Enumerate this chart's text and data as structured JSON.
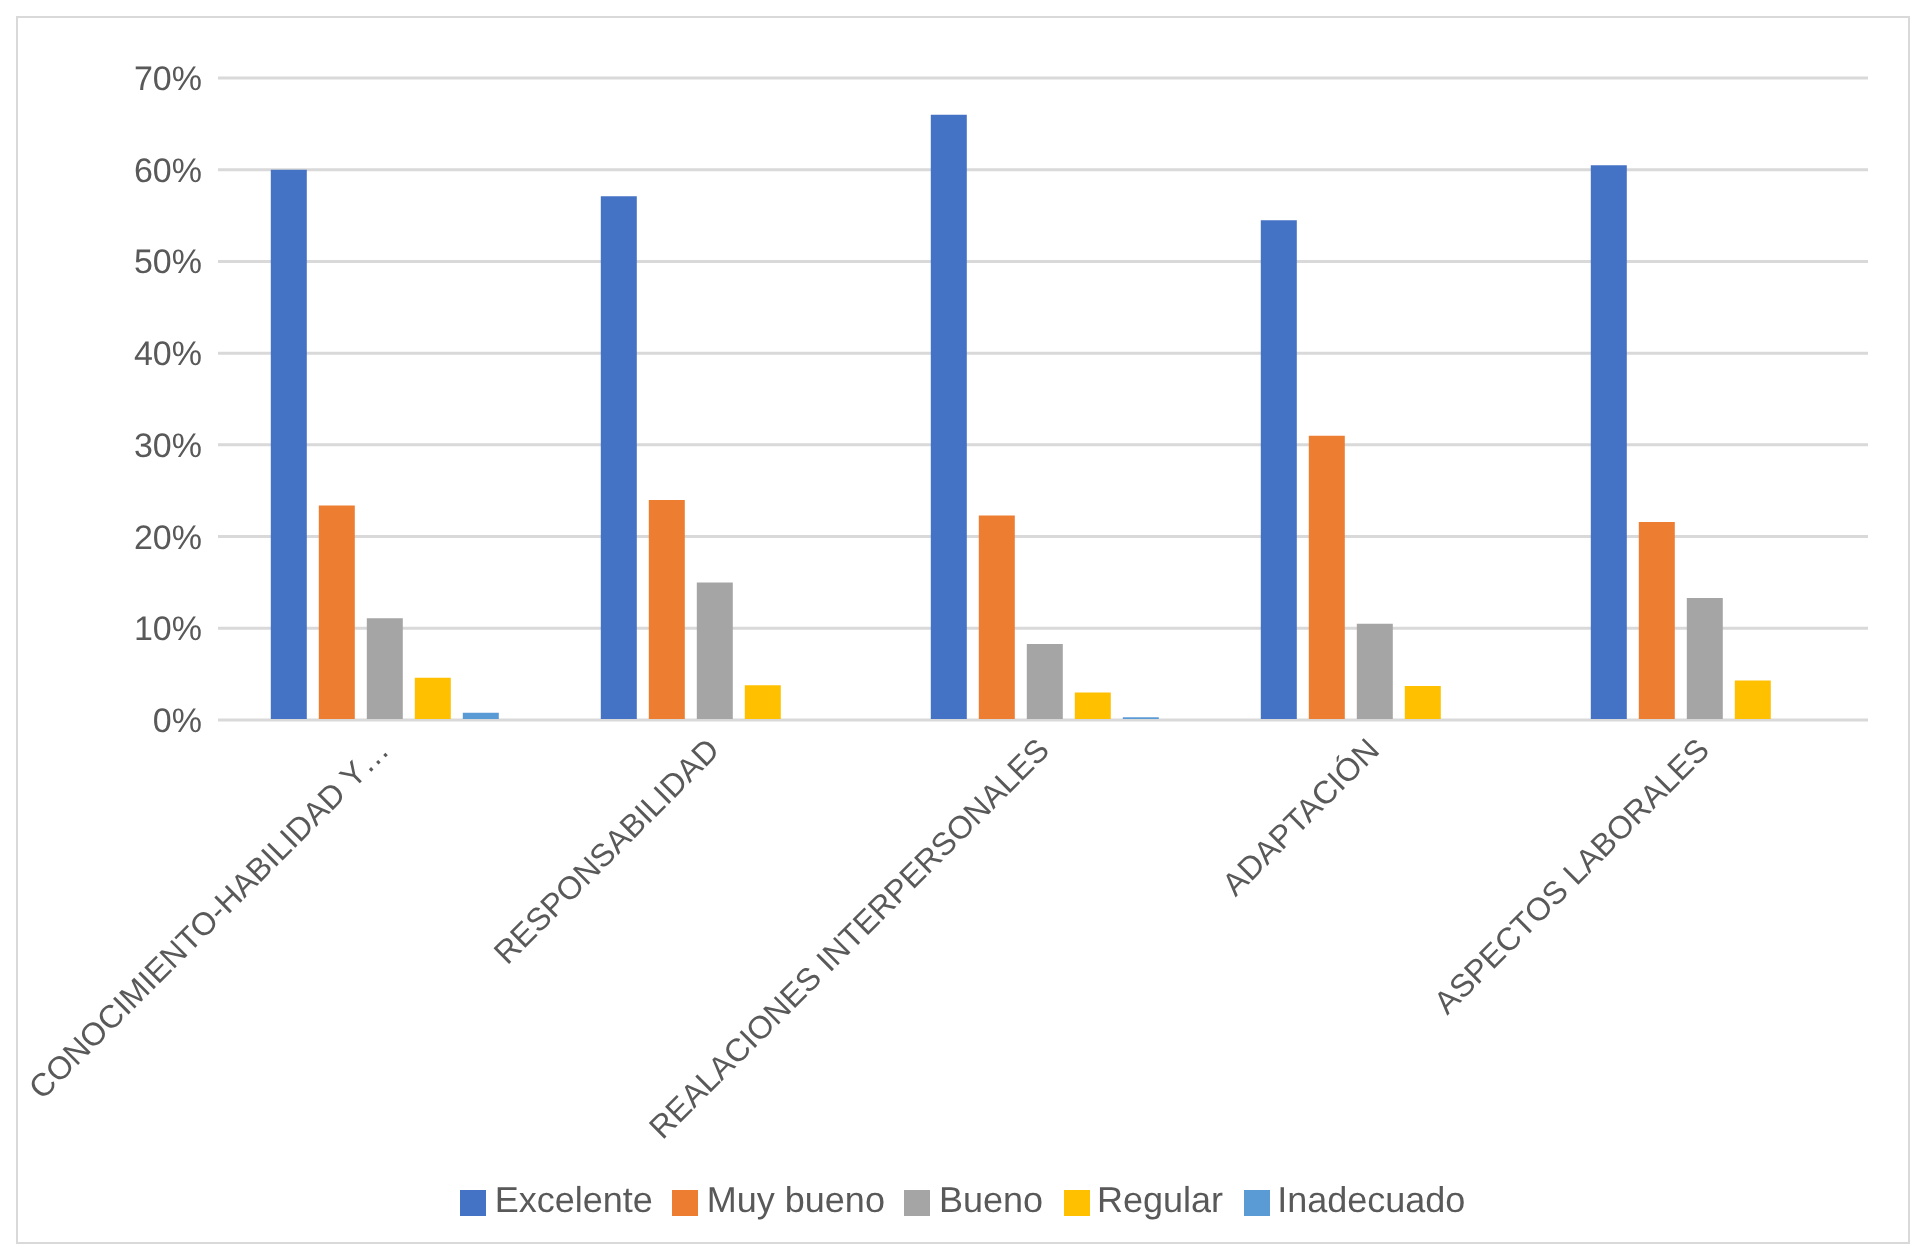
{
  "chart_data": {
    "type": "bar",
    "categories": [
      "CONOCIMIENTO-HABILIDAD Y…",
      "RESPONSABILIDAD",
      "REALACIONES INTERPERSONALES",
      "ADAPTACIÓN",
      "ASPECTOS LABORALES"
    ],
    "series": [
      {
        "name": "Excelente",
        "color": "#4472c4",
        "values": [
          60,
          57.1,
          66,
          54.5,
          60.5
        ]
      },
      {
        "name": "Muy bueno",
        "color": "#ed7d31",
        "values": [
          23.4,
          24,
          22.3,
          31,
          21.6
        ]
      },
      {
        "name": "Bueno",
        "color": "#a5a5a5",
        "values": [
          11.1,
          15,
          8.3,
          10.5,
          13.3
        ]
      },
      {
        "name": "Regular",
        "color": "#ffc000",
        "values": [
          4.6,
          3.8,
          3,
          3.7,
          4.3
        ]
      },
      {
        "name": "Inadecuado",
        "color": "#5b9bd5",
        "values": [
          0.8,
          0,
          0.3,
          0,
          0
        ]
      }
    ],
    "ylim": [
      0,
      70
    ],
    "yticks": [
      {
        "value": 0,
        "label": "0%"
      },
      {
        "value": 10,
        "label": "10%"
      },
      {
        "value": 20,
        "label": "20%"
      },
      {
        "value": 30,
        "label": "30%"
      },
      {
        "value": 40,
        "label": "40%"
      },
      {
        "value": 50,
        "label": "50%"
      },
      {
        "value": 60,
        "label": "60%"
      },
      {
        "value": 70,
        "label": "70%"
      }
    ],
    "grid": "y",
    "legend": "bottom"
  }
}
